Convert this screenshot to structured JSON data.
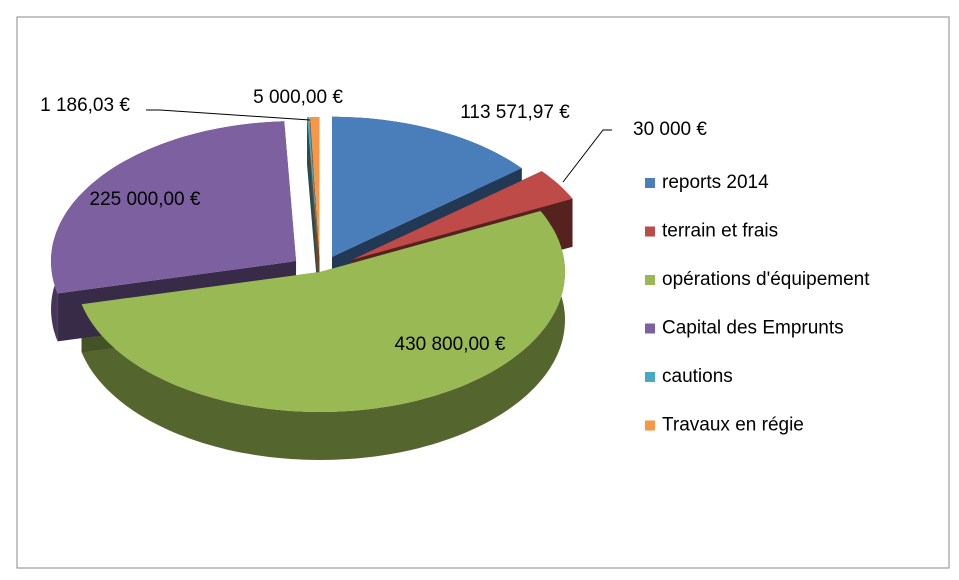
{
  "chart_data": {
    "type": "pie",
    "categories": [
      "reports 2014",
      "terrain et frais",
      "opérations d'équipement",
      "Capital des Emprunts",
      "cautions",
      "Travaux en régie"
    ],
    "values": [
      113571.97,
      30000,
      430800,
      225000,
      1186.03,
      5000
    ],
    "value_labels": [
      "113 571,97 €",
      "30 000 €",
      "430 800,00 €",
      "225 000,00 €",
      "1 186,03 €",
      "5 000,00 €"
    ],
    "colors": [
      "#4a7ebb",
      "#be4b48",
      "#98b954",
      "#7d60a0",
      "#46aac5",
      "#f79646"
    ],
    "legend": "right"
  }
}
